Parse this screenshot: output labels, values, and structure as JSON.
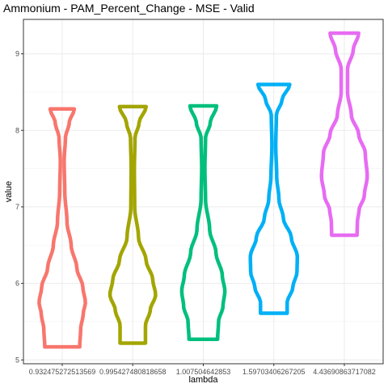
{
  "chart_data": {
    "type": "violin",
    "title": "Ammonium - PAM_Percent_Change - MSE - Valid",
    "xlabel": "lambda",
    "ylabel": "value",
    "categories": [
      "0.932475272513569",
      "0.995427480818658",
      "1.00750464285​3",
      "1.59703406267205",
      "4.43690863717082"
    ],
    "ylim": [
      4.95,
      9.45
    ],
    "yticks": [
      5,
      6,
      7,
      8,
      9
    ],
    "grid": true,
    "legend": "none",
    "series": [
      {
        "category": "0.932475272513569",
        "color": "#F8766D",
        "min": 5.17,
        "max": 8.28,
        "profile": [
          [
            5.17,
            0.55
          ],
          [
            5.4,
            0.58
          ],
          [
            5.6,
            0.66
          ],
          [
            5.75,
            0.73
          ],
          [
            5.95,
            0.65
          ],
          [
            6.2,
            0.46
          ],
          [
            6.5,
            0.28
          ],
          [
            6.8,
            0.15
          ],
          [
            7.2,
            0.08
          ],
          [
            7.6,
            0.06
          ],
          [
            7.9,
            0.1
          ],
          [
            8.1,
            0.22
          ],
          [
            8.28,
            0.38
          ]
        ]
      },
      {
        "category": "0.995427480818658",
        "color": "#A3A500",
        "min": 5.22,
        "max": 8.31,
        "profile": [
          [
            5.22,
            0.4
          ],
          [
            5.45,
            0.4
          ],
          [
            5.65,
            0.55
          ],
          [
            5.85,
            0.72
          ],
          [
            6.05,
            0.63
          ],
          [
            6.3,
            0.42
          ],
          [
            6.6,
            0.18
          ],
          [
            7.0,
            0.06
          ],
          [
            7.5,
            0.05
          ],
          [
            7.9,
            0.07
          ],
          [
            8.1,
            0.2
          ],
          [
            8.31,
            0.42
          ]
        ]
      },
      {
        "category": "1.007504642853",
        "color": "#00BF7D",
        "min": 5.27,
        "max": 8.32,
        "profile": [
          [
            5.27,
            0.45
          ],
          [
            5.5,
            0.48
          ],
          [
            5.7,
            0.62
          ],
          [
            5.9,
            0.68
          ],
          [
            6.1,
            0.6
          ],
          [
            6.4,
            0.4
          ],
          [
            6.7,
            0.2
          ],
          [
            7.1,
            0.07
          ],
          [
            7.5,
            0.05
          ],
          [
            7.9,
            0.07
          ],
          [
            8.1,
            0.22
          ],
          [
            8.32,
            0.42
          ]
        ]
      },
      {
        "category": "1.59703406267205",
        "color": "#00B0F6",
        "min": 5.61,
        "max": 8.6,
        "profile": [
          [
            5.61,
            0.42
          ],
          [
            5.75,
            0.42
          ],
          [
            5.95,
            0.6
          ],
          [
            6.15,
            0.73
          ],
          [
            6.35,
            0.74
          ],
          [
            6.6,
            0.55
          ],
          [
            6.85,
            0.3
          ],
          [
            7.1,
            0.16
          ],
          [
            7.4,
            0.09
          ],
          [
            7.8,
            0.06
          ],
          [
            8.2,
            0.08
          ],
          [
            8.4,
            0.26
          ],
          [
            8.6,
            0.5
          ]
        ]
      },
      {
        "category": "4.43690863717082",
        "color": "#E76BF3",
        "min": 6.63,
        "max": 9.27,
        "profile": [
          [
            6.63,
            0.4
          ],
          [
            6.8,
            0.41
          ],
          [
            6.95,
            0.46
          ],
          [
            7.15,
            0.63
          ],
          [
            7.4,
            0.72
          ],
          [
            7.7,
            0.66
          ],
          [
            7.95,
            0.45
          ],
          [
            8.2,
            0.22
          ],
          [
            8.5,
            0.1
          ],
          [
            8.8,
            0.1
          ],
          [
            9.05,
            0.28
          ],
          [
            9.27,
            0.45
          ]
        ]
      }
    ]
  }
}
